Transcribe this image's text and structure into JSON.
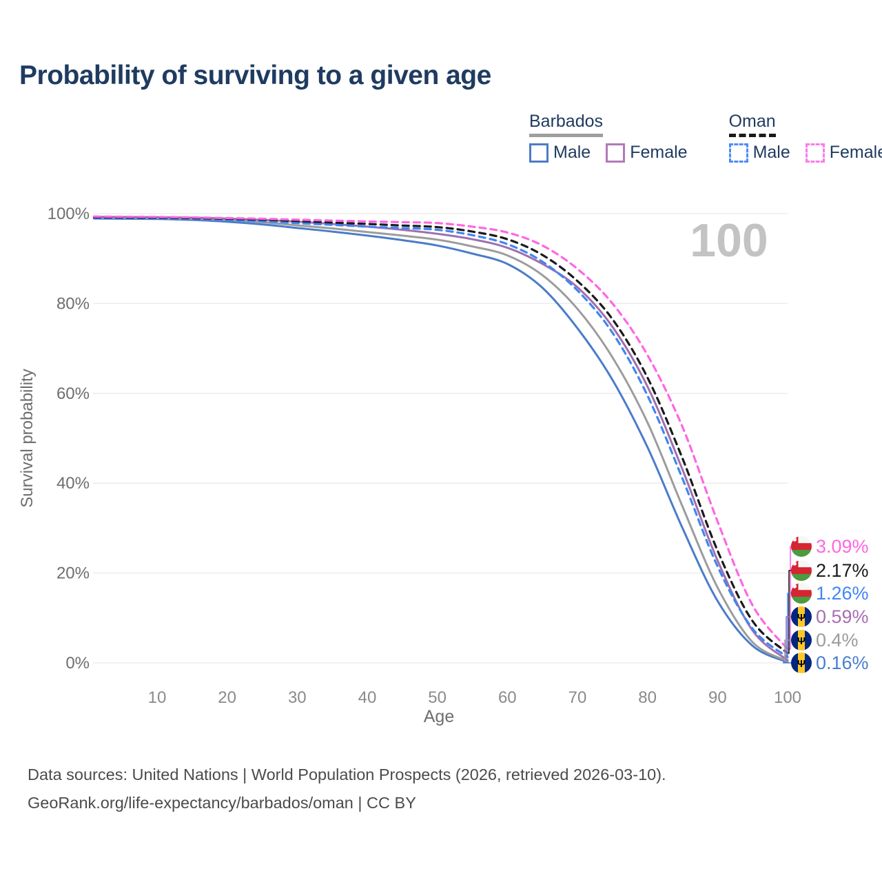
{
  "title": "Probability of surviving to a given age",
  "age_counter": "100",
  "legend": {
    "groups": [
      {
        "country": "Barbados",
        "underline_style": "solid",
        "underline_color": "#9e9e9e",
        "items": [
          {
            "label": "Male",
            "color": "#4b7cc4",
            "dashed": false
          },
          {
            "label": "Female",
            "color": "#b279b8",
            "dashed": false
          }
        ]
      },
      {
        "country": "Oman",
        "underline_style": "dashed",
        "underline_color": "#1a1a1a",
        "items": [
          {
            "label": "Male",
            "color": "#4c8df5",
            "dashed": true
          },
          {
            "label": "Female",
            "color": "#fb7be8",
            "dashed": true
          }
        ]
      }
    ]
  },
  "chart_data": {
    "type": "line",
    "title": "Probability of surviving to a given age",
    "xlabel": "Age",
    "ylabel": "Survival probability",
    "xlim": [
      0,
      100
    ],
    "ylim": [
      0,
      100
    ],
    "grid": "horizontal",
    "x_ticks": [
      10,
      20,
      30,
      40,
      50,
      60,
      70,
      80,
      90,
      100
    ],
    "y_ticks": [
      0,
      20,
      40,
      60,
      80,
      100
    ],
    "y_tick_suffix": "%",
    "ages": [
      1,
      5,
      10,
      15,
      20,
      25,
      30,
      35,
      40,
      45,
      50,
      55,
      60,
      65,
      70,
      75,
      80,
      85,
      90,
      95,
      100
    ],
    "series": [
      {
        "id": "barbados-male",
        "name": "Barbados Male",
        "color": "#4a7cc9",
        "dashed": false,
        "values": [
          98.9,
          98.85,
          98.8,
          98.6,
          98.2,
          97.6,
          96.8,
          96.0,
          95.1,
          94.1,
          92.9,
          91.1,
          88.8,
          83.5,
          74.5,
          63.0,
          48.0,
          30.0,
          13.8,
          3.8,
          0.16
        ]
      },
      {
        "id": "barbados-all",
        "name": "Barbados",
        "color": "#9c9c9c",
        "dashed": false,
        "values": [
          99.1,
          99.05,
          99.0,
          98.85,
          98.6,
          98.1,
          97.4,
          96.7,
          95.9,
          95.1,
          94.2,
          92.7,
          90.7,
          86.3,
          78.8,
          68.0,
          53.5,
          34.8,
          16.8,
          4.6,
          0.4
        ]
      },
      {
        "id": "barbados-female",
        "name": "Barbados Female",
        "color": "#a06fae",
        "dashed": false,
        "values": [
          99.3,
          99.25,
          99.2,
          99.1,
          98.9,
          98.6,
          98.2,
          97.7,
          97.1,
          96.4,
          95.5,
          94.3,
          92.4,
          88.8,
          83.6,
          74.8,
          61.5,
          43.0,
          22.8,
          7.2,
          0.59
        ]
      },
      {
        "id": "oman-male",
        "name": "Oman Male",
        "color": "#3f86f3",
        "dashed": true,
        "values": [
          99.0,
          98.95,
          98.9,
          98.8,
          98.6,
          98.3,
          97.9,
          97.5,
          97.1,
          96.8,
          96.4,
          95.2,
          93.2,
          89.3,
          82.9,
          73.5,
          59.5,
          41.0,
          21.5,
          7.6,
          1.26
        ]
      },
      {
        "id": "oman-all",
        "name": "Oman",
        "color": "#1a1a1a",
        "dashed": true,
        "values": [
          99.2,
          99.15,
          99.1,
          99.0,
          98.85,
          98.65,
          98.35,
          98.0,
          97.7,
          97.35,
          97.0,
          96.0,
          94.3,
          90.8,
          85.0,
          76.5,
          63.5,
          45.5,
          25.0,
          9.3,
          2.17
        ]
      },
      {
        "id": "oman-female",
        "name": "Oman Female",
        "color": "#ff66e3",
        "dashed": true,
        "values": [
          99.35,
          99.3,
          99.25,
          99.15,
          99.0,
          98.85,
          98.65,
          98.45,
          98.25,
          98.1,
          97.9,
          97.1,
          95.8,
          92.9,
          87.7,
          80.0,
          68.5,
          52.5,
          31.5,
          12.8,
          3.09
        ]
      }
    ],
    "end_labels": [
      {
        "series_id": "oman-female",
        "flag": "oman",
        "value": "3.09%",
        "color": "#ff66e3"
      },
      {
        "series_id": "oman-all",
        "flag": "oman",
        "value": "2.17%",
        "color": "#1a1a1a"
      },
      {
        "series_id": "oman-male",
        "flag": "oman",
        "value": "1.26%",
        "color": "#4285f4"
      },
      {
        "series_id": "barbados-female",
        "flag": "barbados",
        "value": "0.59%",
        "color": "#a76fb0"
      },
      {
        "series_id": "barbados-all",
        "flag": "barbados",
        "value": "0.4%",
        "color": "#9c9c9c"
      },
      {
        "series_id": "barbados-male",
        "flag": "barbados",
        "value": "0.16%",
        "color": "#4a7dd1"
      }
    ]
  },
  "footer": {
    "line1": "Data sources: United Nations | World Population Prospects (2026, retrieved 2026-03-10).",
    "line2": "GeoRank.org/life-expectancy/barbados/oman | CC BY"
  }
}
